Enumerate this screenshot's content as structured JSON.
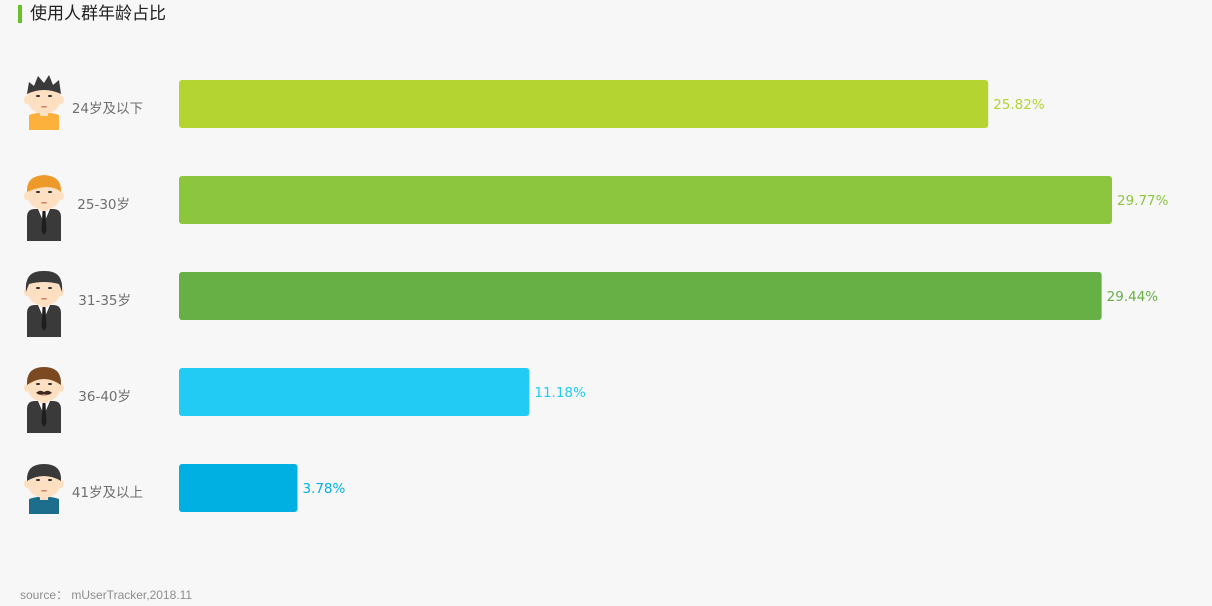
{
  "title": "使用人群年龄占比",
  "source": "source： mUserTracker,2018.11",
  "chart_data": {
    "type": "bar",
    "orientation": "horizontal",
    "categories": [
      "24岁及以下",
      "25-30岁",
      "31-35岁",
      "36-40岁",
      "41岁及以上"
    ],
    "values": [
      25.82,
      29.77,
      29.44,
      11.18,
      3.78
    ],
    "value_labels": [
      "25.82%",
      "29.77%",
      "29.44%",
      "11.18%",
      "3.78%"
    ],
    "colors": [
      "#b4d432",
      "#8cc63f",
      "#66b046",
      "#21cbf4",
      "#00b0e3"
    ],
    "icons": [
      "young-boy-icon",
      "young-man-tie-icon",
      "businessman-suit-icon",
      "mustache-man-icon",
      "older-man-icon"
    ],
    "title": "使用人群年龄占比",
    "xlabel": "",
    "ylabel": "",
    "xlim": [
      0,
      29.77
    ],
    "grid": false,
    "legend": "none"
  }
}
